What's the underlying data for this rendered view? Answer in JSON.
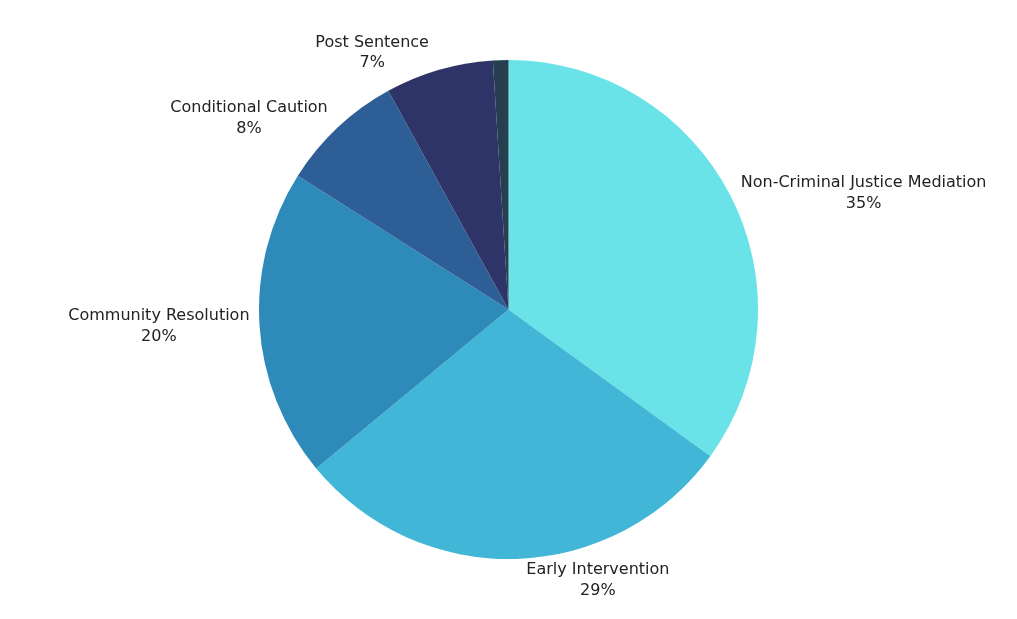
{
  "chart_data": {
    "type": "pie",
    "categories": [
      "Non-Criminal Justice Mediation",
      "Early Intervention",
      "Community Resolution",
      "Conditional Caution",
      "Post Sentence",
      null
    ],
    "values": [
      35,
      29,
      20,
      8,
      7,
      1
    ],
    "value_labels": [
      "35%",
      "29%",
      "20%",
      "8%",
      "7%",
      null
    ],
    "colors": [
      "#6ae3e8",
      "#42b6d6",
      "#2e8bb9",
      "#2e5e96",
      "#2e3468",
      "#253e50"
    ],
    "legend": false
  }
}
